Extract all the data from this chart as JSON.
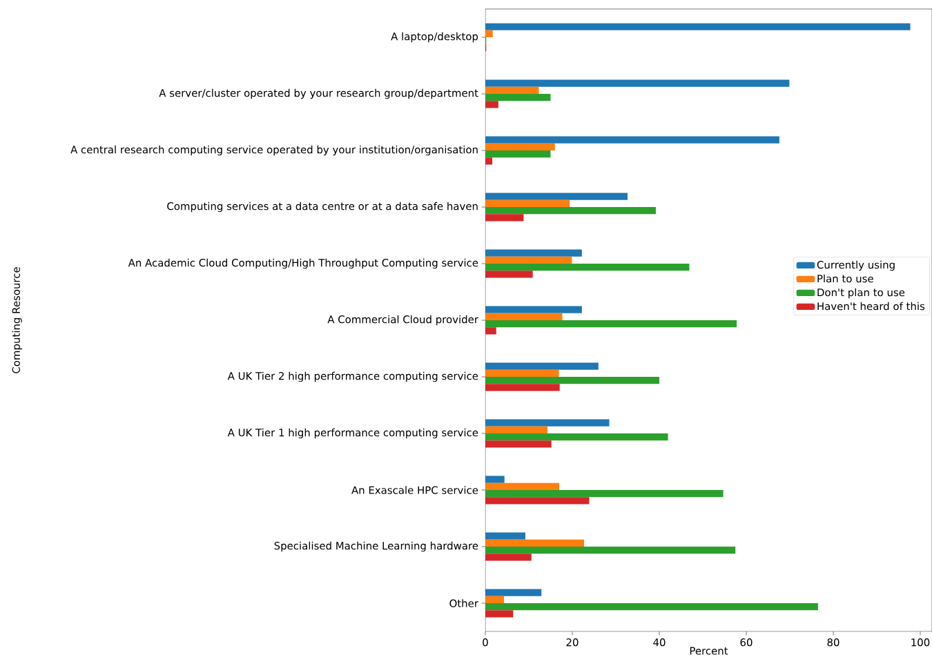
{
  "chart_data": {
    "type": "bar",
    "orientation": "horizontal",
    "xlabel": "Percent",
    "ylabel": "Computing Resource",
    "categories": [
      "A laptop/desktop",
      "A server/cluster operated by your research group/department",
      "A central research computing service operated by your institution/organisation",
      "Computing services at a data centre or at a data safe haven",
      "An Academic Cloud Computing/High Throughput Computing service",
      "A Commercial Cloud provider",
      "A UK Tier 2 high performance computing service",
      "A UK Tier 1 high performance computing service",
      "An Exascale HPC service",
      "Specialised Machine Learning hardware",
      "Other"
    ],
    "series": [
      {
        "name": "Currently using",
        "color": "#1f77b4",
        "values": [
          97.7,
          69.9,
          67.6,
          32.7,
          22.2,
          22.2,
          26.0,
          28.5,
          4.4,
          9.2,
          12.9
        ]
      },
      {
        "name": "Plan to use",
        "color": "#ff7f0e",
        "values": [
          1.7,
          12.3,
          16.0,
          19.4,
          19.9,
          17.7,
          16.9,
          14.3,
          17.0,
          22.7,
          4.3
        ]
      },
      {
        "name": "Don't plan to use",
        "color": "#2ca02c",
        "values": [
          0.2,
          15.0,
          15.0,
          39.2,
          46.9,
          57.8,
          40.0,
          42.0,
          54.7,
          57.5,
          76.5
        ]
      },
      {
        "name": "Haven't heard of this",
        "color": "#d62728",
        "values": [
          0.2,
          3.0,
          1.6,
          8.8,
          10.9,
          2.5,
          17.1,
          15.2,
          23.9,
          10.6,
          6.4
        ]
      }
    ],
    "xlim": [
      0,
      102.7
    ],
    "xticks": [
      0,
      20,
      40,
      60,
      80,
      100
    ],
    "grid": false,
    "legend": "right"
  }
}
